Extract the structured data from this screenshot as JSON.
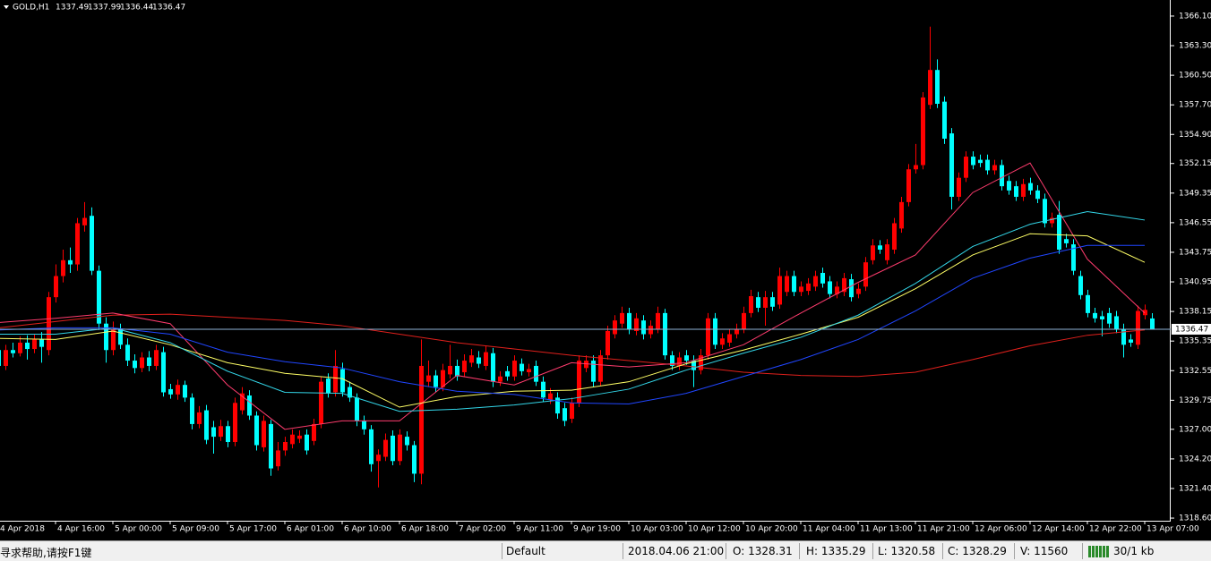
{
  "chart_data": {
    "type": "candlestick",
    "title": "GOLD,H1",
    "up_color": "#ff0000",
    "down_color": "#00ffff",
    "background": "#000000",
    "current_line_color": "#8fb4d8",
    "categories": [
      "4 Apr 2018",
      null,
      null,
      null,
      null,
      null,
      null,
      null,
      "4 Apr 16:00",
      null,
      null,
      null,
      null,
      null,
      null,
      null,
      "5 Apr 00:00",
      null,
      null,
      null,
      null,
      null,
      null,
      null,
      "5 Apr 09:00",
      null,
      null,
      null,
      null,
      null,
      null,
      null,
      "5 Apr 17:00",
      null,
      null,
      null,
      null,
      null,
      null,
      null,
      "6 Apr 01:00",
      null,
      null,
      null,
      null,
      null,
      null,
      null,
      "6 Apr 10:00",
      null,
      null,
      null,
      null,
      null,
      null,
      null,
      "6 Apr 18:00",
      null,
      null,
      null,
      null,
      null,
      null,
      null,
      "7 Apr 02:00",
      null,
      null,
      null,
      null,
      null,
      null,
      null,
      "9 Apr 11:00",
      null,
      null,
      null,
      null,
      null,
      null,
      null,
      "9 Apr 19:00",
      null,
      null,
      null,
      null,
      null,
      null,
      null,
      "10 Apr 03:00",
      null,
      null,
      null,
      null,
      null,
      null,
      null,
      "10 Apr 12:00",
      null,
      null,
      null,
      null,
      null,
      null,
      null,
      "10 Apr 20:00",
      null,
      null,
      null,
      null,
      null,
      null,
      null,
      "11 Apr 04:00",
      null,
      null,
      null,
      null,
      null,
      null,
      null,
      "11 Apr 13:00",
      null,
      null,
      null,
      null,
      null,
      null,
      null,
      "11 Apr 21:00",
      null,
      null,
      null,
      null,
      null,
      null,
      null,
      "12 Apr 06:00",
      null,
      null,
      null,
      null,
      null,
      null,
      null,
      "12 Apr 14:00",
      null,
      null,
      null,
      null,
      null,
      null,
      null,
      "12 Apr 22:00",
      null,
      null,
      null,
      null,
      null,
      null,
      null,
      "13 Apr 07:00",
      null
    ],
    "open": [
      1334.5,
      1333.0,
      1334.5,
      1334.2,
      1335.2,
      1334.6,
      1335.5,
      1334.5,
      1339.5,
      1341.5,
      1343,
      1342.6,
      1346.3,
      1347.2,
      1342,
      1337,
      1334.5,
      1336.5,
      1335,
      1333.5,
      1332.8,
      1333.8,
      1333,
      1334.3,
      1330.8,
      1330.3,
      1331.2,
      1330,
      1327.5,
      1328.8,
      1327.2,
      1326.3,
      1327.3,
      1325.8,
      1328.8,
      1330.2,
      1328.3,
      1325.3,
      1327.5,
      1323.5,
      1325,
      1325.6,
      1326.1,
      1326.5,
      1325.9,
      1327.5,
      1331.8,
      1330.5,
      1332.7,
      1331,
      1330,
      1327.8,
      1327,
      1324,
      1324.4,
      1326.4,
      1324,
      1326.3,
      1325.5,
      1322.8,
      1331.5,
      1332.1,
      1331,
      1332.2,
      1333,
      1332.4,
      1333.3,
      1333.8,
      1333,
      1334.2,
      1331.5,
      1332.5,
      1332,
      1333.2,
      1332.4,
      1333,
      1331.5,
      1329.8,
      1330,
      1329,
      1328,
      1329.5,
      1332.8,
      1333.5,
      1331.5,
      1334,
      1336,
      1337,
      1338,
      1336.3,
      1337.3,
      1336,
      1336.5,
      1338,
      1334,
      1333,
      1334,
      1333.5,
      1332.6,
      1334,
      1337.5,
      1335,
      1335.2,
      1336,
      1336.5,
      1338,
      1339.5,
      1338.5,
      1339.5,
      1338.8,
      1340,
      1341.5,
      1340,
      1340.1,
      1340.5,
      1341.8,
      1341,
      1339.8,
      1340,
      1341.2,
      1339.8,
      1340.5,
      1343,
      1344.4,
      1343,
      1344,
      1346,
      1348.5,
      1351.6,
      1352,
      1357.7,
      1361,
      1358,
      1355,
      1349,
      1350.8,
      1352.8,
      1352.5,
      1352.5,
      1351.5,
      1352,
      1350.5,
      1350,
      1349,
      1350.3,
      1349.6,
      1348.8,
      1346.5,
      1347.3,
      1345,
      1344.5,
      1341.5,
      1339.7,
      1338,
      1337.7,
      1338,
      1337.7,
      1336.5,
      1335.5,
      1335,
      1337.8,
      1337.49
    ],
    "high": [
      1335,
      1335,
      1335.2,
      1335.8,
      1335.9,
      1336,
      1336.2,
      1340,
      1342.6,
      1344,
      1344.2,
      1347,
      1348.5,
      1348,
      1342.5,
      1337.6,
      1337.2,
      1337,
      1335.6,
      1334.1,
      1334.3,
      1334.4,
      1335,
      1334.8,
      1331.3,
      1331.7,
      1331.6,
      1330.4,
      1329.2,
      1329.3,
      1327.8,
      1327.9,
      1327.8,
      1330,
      1331,
      1330.7,
      1328.7,
      1328.3,
      1327.9,
      1325.8,
      1326.3,
      1327,
      1326.9,
      1327,
      1328,
      1332,
      1332.3,
      1334.5,
      1333.3,
      1331.5,
      1330.4,
      1328.3,
      1327.4,
      1325.1,
      1326.6,
      1326.9,
      1327,
      1326.8,
      1325.9,
      1335.5,
      1333.5,
      1332.6,
      1333.2,
      1335,
      1333.6,
      1334.1,
      1334.6,
      1334.4,
      1334.9,
      1334.7,
      1332.5,
      1333,
      1334,
      1333.7,
      1333.2,
      1333.5,
      1332,
      1330.9,
      1330.5,
      1329.5,
      1330,
      1334,
      1334,
      1334,
      1334.5,
      1336.8,
      1337.8,
      1338.6,
      1338.5,
      1338,
      1337.8,
      1337.3,
      1338.6,
      1338.4,
      1334.4,
      1334.3,
      1334.5,
      1334,
      1334.6,
      1338,
      1338,
      1336.1,
      1336.5,
      1337,
      1338.6,
      1340.2,
      1340,
      1340.1,
      1340,
      1342.3,
      1342,
      1342,
      1341,
      1341.3,
      1342,
      1342.3,
      1341.5,
      1341,
      1341.8,
      1341.7,
      1340.8,
      1343.3,
      1345,
      1344.9,
      1345,
      1347,
      1349,
      1352.1,
      1354,
      1358.9,
      1365.1,
      1362,
      1358.5,
      1355.5,
      1351.3,
      1353.3,
      1353.3,
      1353,
      1353,
      1352.5,
      1352.5,
      1351,
      1350.5,
      1350.7,
      1350.8,
      1350.1,
      1349.3,
      1347.5,
      1348.6,
      1345.5,
      1345,
      1342,
      1340.2,
      1338.5,
      1338.2,
      1338.5,
      1338.2,
      1337,
      1336,
      1338.7,
      1338.8,
      1337.99
    ],
    "low": [
      1331.6,
      1332.6,
      1333.8,
      1333.9,
      1333.6,
      1334.2,
      1333.3,
      1334,
      1339,
      1340.9,
      1341.8,
      1342,
      1345.7,
      1341.6,
      1336.4,
      1333.3,
      1334,
      1334.6,
      1333,
      1332.3,
      1332.4,
      1332.5,
      1332.6,
      1330.1,
      1329.9,
      1329.8,
      1329.6,
      1327,
      1327.1,
      1325.6,
      1324.7,
      1325.9,
      1325.3,
      1325.4,
      1328.4,
      1327.9,
      1325,
      1324.9,
      1322.6,
      1323.1,
      1324.5,
      1325.2,
      1325.7,
      1324.6,
      1325.5,
      1327.1,
      1330,
      1330.1,
      1330.1,
      1329.6,
      1327.3,
      1326.5,
      1323,
      1321.5,
      1324,
      1323.6,
      1323.6,
      1325,
      1322,
      1321.8,
      1331,
      1330.5,
      1330.6,
      1331.8,
      1331.6,
      1332,
      1332.9,
      1332.8,
      1332.6,
      1331,
      1331.1,
      1331.6,
      1331.6,
      1332.1,
      1332,
      1331.1,
      1329.6,
      1329.4,
      1328,
      1327.3,
      1327.6,
      1329.1,
      1332.4,
      1331,
      1331.1,
      1333.6,
      1335.6,
      1336.6,
      1336,
      1335.9,
      1335.5,
      1335.6,
      1336.1,
      1333.6,
      1332.6,
      1332.6,
      1333.1,
      1331,
      1332.2,
      1333.6,
      1334.6,
      1334.6,
      1334.8,
      1335.6,
      1336.1,
      1337.6,
      1338.1,
      1336.8,
      1338.2,
      1338.4,
      1339.6,
      1339.6,
      1339.6,
      1339.7,
      1340.1,
      1340.4,
      1339.4,
      1339.4,
      1339.6,
      1339.1,
      1339.4,
      1340.1,
      1342.6,
      1343.6,
      1342.6,
      1343.6,
      1345.6,
      1348.1,
      1351.2,
      1351.6,
      1357.3,
      1357.4,
      1354,
      1347.8,
      1348.6,
      1350.4,
      1351.6,
      1351.8,
      1351.1,
      1351.1,
      1349.6,
      1349.2,
      1348.6,
      1348.6,
      1349.2,
      1348.4,
      1346.1,
      1346.1,
      1343.6,
      1344.2,
      1341.6,
      1339.3,
      1337.6,
      1337.1,
      1335.8,
      1336.6,
      1336.1,
      1333.8,
      1334.8,
      1334.6,
      1337.4,
      1336.44
    ],
    "close": [
      1333.0,
      1334.5,
      1334.2,
      1335.2,
      1334.6,
      1335.5,
      1334.8,
      1339.5,
      1341.5,
      1343,
      1342.6,
      1346.5,
      1347,
      1342,
      1337,
      1334.5,
      1336.5,
      1335,
      1333.5,
      1332.8,
      1333.8,
      1333,
      1334.5,
      1330.5,
      1330.3,
      1331.2,
      1330,
      1327.5,
      1328.6,
      1326,
      1326.3,
      1327.3,
      1325.8,
      1329.5,
      1330.4,
      1328.3,
      1325.5,
      1327.8,
      1323.3,
      1325,
      1325.8,
      1326.5,
      1326.4,
      1325,
      1327.5,
      1331.5,
      1330.4,
      1333,
      1330.5,
      1330,
      1327.8,
      1327,
      1323.7,
      1324.6,
      1326,
      1324,
      1326.5,
      1325.5,
      1322.8,
      1333,
      1332.1,
      1331,
      1332.6,
      1333,
      1332,
      1333.5,
      1334,
      1333.2,
      1334.3,
      1331.5,
      1332,
      1332,
      1333.5,
      1332.5,
      1332.7,
      1331.5,
      1330,
      1330.4,
      1328.5,
      1327.8,
      1329.5,
      1333.5,
      1333.5,
      1331.5,
      1334,
      1336.3,
      1337.3,
      1338,
      1336.5,
      1337.5,
      1336,
      1336.8,
      1338,
      1334,
      1333,
      1333.8,
      1333.5,
      1332.6,
      1334,
      1337.5,
      1335,
      1335.6,
      1336,
      1336.5,
      1338,
      1339.6,
      1338.5,
      1339.5,
      1338.6,
      1341.5,
      1341.5,
      1340,
      1340.5,
      1340.8,
      1341.5,
      1340.8,
      1339.8,
      1340.5,
      1341.3,
      1339.5,
      1340.3,
      1342.8,
      1344.4,
      1344,
      1344.5,
      1346.5,
      1348.5,
      1351.6,
      1352,
      1358.4,
      1361,
      1357.8,
      1354.5,
      1349,
      1350.8,
      1352.8,
      1352,
      1352.2,
      1351.5,
      1352,
      1350,
      1349.6,
      1349,
      1350.2,
      1349.6,
      1348.8,
      1346.5,
      1347,
      1344,
      1344.6,
      1342,
      1339.7,
      1338,
      1337.5,
      1337.4,
      1337,
      1336.5,
      1335,
      1335.2,
      1338.2,
      1338.3,
      1336.47
    ],
    "lines": [
      {
        "color": "#e0201c",
        "x": [
          0,
          8,
          16,
          24,
          32,
          40,
          48,
          56,
          64,
          72,
          80,
          88,
          96,
          104,
          112,
          120,
          128,
          136,
          144,
          152,
          160
        ],
        "values": [
          1336.6,
          1337.2,
          1337.8,
          1337.9,
          1337.6,
          1337.3,
          1336.8,
          1336.0,
          1335.2,
          1334.6,
          1334.0,
          1333.5,
          1333.0,
          1332.4,
          1332.1,
          1332.0,
          1332.4,
          1333.6,
          1334.9,
          1335.9,
          1336.4
        ]
      },
      {
        "color": "#ff3c6e",
        "x": [
          0,
          8,
          16,
          24,
          32,
          40,
          48,
          56,
          64,
          72,
          80,
          88,
          96,
          104,
          112,
          120,
          128,
          136,
          144,
          152,
          160
        ],
        "values": [
          1337.1,
          1337.5,
          1338.0,
          1337.0,
          1331.2,
          1327.0,
          1327.8,
          1327.8,
          1332.1,
          1331.2,
          1333.3,
          1332.9,
          1333.3,
          1335.0,
          1338.0,
          1340.9,
          1343.5,
          1349.4,
          1352.2,
          1343.1,
          1338.0
        ]
      },
      {
        "color": "#ffff66",
        "x": [
          0,
          8,
          16,
          24,
          32,
          40,
          48,
          56,
          64,
          72,
          80,
          88,
          96,
          104,
          112,
          120,
          128,
          136,
          144,
          152,
          160
        ],
        "values": [
          1335.6,
          1335.5,
          1336.3,
          1335.0,
          1333.3,
          1332.3,
          1331.8,
          1329.1,
          1330.1,
          1330.6,
          1330.7,
          1331.5,
          1333.2,
          1334.5,
          1336.0,
          1337.6,
          1340.3,
          1343.5,
          1345.5,
          1345.3,
          1342.8
        ]
      },
      {
        "color": "#33d6e8",
        "x": [
          0,
          8,
          16,
          24,
          32,
          40,
          48,
          56,
          64,
          72,
          80,
          88,
          96,
          104,
          112,
          120,
          128,
          136,
          144,
          152,
          160
        ],
        "values": [
          1336.0,
          1336.0,
          1336.6,
          1335.2,
          1332.5,
          1330.5,
          1330.4,
          1328.7,
          1328.9,
          1329.3,
          1329.9,
          1330.8,
          1332.6,
          1334.2,
          1335.7,
          1337.8,
          1340.8,
          1344.3,
          1346.4,
          1347.6,
          1346.8
        ]
      },
      {
        "color": "#2046ff",
        "x": [
          0,
          8,
          16,
          24,
          32,
          40,
          48,
          56,
          64,
          72,
          80,
          88,
          96,
          104,
          112,
          120,
          128,
          136,
          144,
          152,
          160
        ],
        "values": [
          1336.4,
          1336.6,
          1336.6,
          1336.0,
          1334.3,
          1333.4,
          1332.8,
          1331.5,
          1330.6,
          1330.3,
          1329.5,
          1329.4,
          1330.4,
          1332.0,
          1333.6,
          1335.5,
          1338.2,
          1341.3,
          1343.2,
          1344.4,
          1344.4
        ]
      }
    ],
    "ylim": [
      1318.35,
      1367.62
    ],
    "yticks": [
      {
        "value": 1318.6,
        "label": "1318.60"
      },
      {
        "value": 1321.4,
        "label": "1321.40"
      },
      {
        "value": 1324.2,
        "label": "1324.20"
      },
      {
        "value": 1327,
        "label": "1327.00"
      },
      {
        "value": 1329.75,
        "label": "1329.75"
      },
      {
        "value": 1332.55,
        "label": "1332.55"
      },
      {
        "value": 1335.35,
        "label": "1335.35"
      },
      {
        "value": 1338.15,
        "label": "1338.15"
      },
      {
        "value": 1340.95,
        "label": "1340.95"
      },
      {
        "value": 1343.75,
        "label": "1343.75"
      },
      {
        "value": 1346.55,
        "label": "1346.55"
      },
      {
        "value": 1349.35,
        "label": "1349.35"
      },
      {
        "value": 1352.15,
        "label": "1352.15"
      },
      {
        "value": 1354.9,
        "label": "1354.90"
      },
      {
        "value": 1357.7,
        "label": "1357.70"
      },
      {
        "value": 1360.5,
        "label": "1360.50"
      },
      {
        "value": 1363.3,
        "label": "1363.30"
      },
      {
        "value": 1366.1,
        "label": "1366.10"
      }
    ]
  },
  "status_bar": {
    "help": "寻求帮助,请按F1键",
    "profile": "Default",
    "time": "2018.04.06 21:00",
    "open": "O: 1328.31",
    "high": "H: 1335.29",
    "low": "L: 1320.58",
    "close": "C: 1328.29",
    "volume": "V: 11560",
    "traffic": "30/1 kb"
  }
}
